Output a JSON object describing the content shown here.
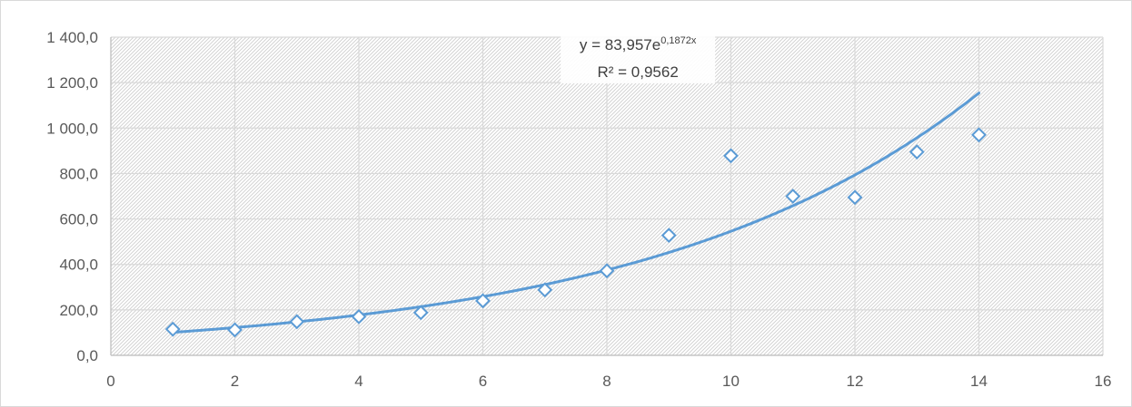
{
  "chart_data": {
    "type": "scatter",
    "title": "",
    "xlabel": "",
    "ylabel": "",
    "xlim": [
      0,
      16
    ],
    "ylim": [
      0,
      1400
    ],
    "x_ticks": [
      0,
      2,
      4,
      6,
      8,
      10,
      12,
      14,
      16
    ],
    "x_tick_labels": [
      "0",
      "2",
      "4",
      "6",
      "8",
      "10",
      "12",
      "14",
      "16"
    ],
    "y_ticks": [
      0,
      200,
      400,
      600,
      800,
      1000,
      1200,
      1400
    ],
    "y_tick_labels": [
      "0,0",
      "200,0",
      "400,0",
      "600,0",
      "800,0",
      "1 000,0",
      "1 200,0",
      "1 400,0"
    ],
    "grid": true,
    "plot_background": "diagonal hatch",
    "legend": "none",
    "series": [
      {
        "marker": "diamond-open",
        "color": "#5b9bd5",
        "points": [
          {
            "x": 1,
            "y": 115
          },
          {
            "x": 2,
            "y": 112
          },
          {
            "x": 3,
            "y": 148
          },
          {
            "x": 4,
            "y": 170
          },
          {
            "x": 5,
            "y": 188
          },
          {
            "x": 6,
            "y": 240
          },
          {
            "x": 7,
            "y": 288
          },
          {
            "x": 8,
            "y": 372
          },
          {
            "x": 9,
            "y": 528
          },
          {
            "x": 10,
            "y": 878
          },
          {
            "x": 11,
            "y": 700
          },
          {
            "x": 12,
            "y": 695
          },
          {
            "x": 13,
            "y": 895
          },
          {
            "x": 14,
            "y": 970
          }
        ]
      }
    ],
    "trendline": {
      "kind": "exponential",
      "a": 83.957,
      "b": 0.1872,
      "x_range": [
        1,
        14
      ],
      "color": "#5b9bd5",
      "equation_base": "y = 83,957e",
      "equation_exponent": "0,1872x",
      "r_squared_label": "R² = 0,9562"
    }
  }
}
